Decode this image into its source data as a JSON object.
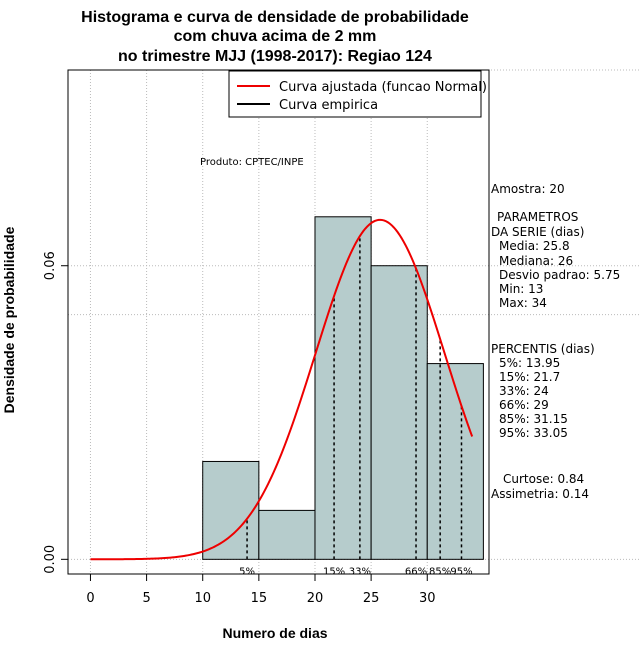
{
  "chart_data": {
    "type": "bar",
    "title_lines": [
      "Histograma e curva de densidade de probabilidade",
      "com chuva acima de 2 mm",
      "no trimestre MJJ (1998-2017): Regiao 124"
    ],
    "xlabel": "Numero de dias",
    "ylabel": "Densidade de probabilidade",
    "xlim": [
      -2,
      35.5
    ],
    "ylim": [
      -0.003,
      0.1
    ],
    "x_ticks": [
      0,
      5,
      10,
      15,
      20,
      25,
      30
    ],
    "y_ticks": [
      0.0,
      0.06
    ],
    "y_tick_labels": [
      "0.00",
      "0.06"
    ],
    "grid": true,
    "grid_y_extra": [
      0.05,
      0.1
    ],
    "bins": [
      {
        "from": 10,
        "to": 15,
        "density": 0.02
      },
      {
        "from": 15,
        "to": 20,
        "density": 0.01
      },
      {
        "from": 20,
        "to": 25,
        "density": 0.07
      },
      {
        "from": 25,
        "to": 30,
        "density": 0.06
      },
      {
        "from": 30,
        "to": 35,
        "density": 0.04
      }
    ],
    "normal_fit": {
      "mean": 25.8,
      "sd": 5.75,
      "x_from": 0,
      "x_to": 34
    },
    "percentiles": [
      {
        "label": "5%",
        "value": 13.95
      },
      {
        "label": "15%",
        "value": 21.7
      },
      {
        "label": "33%",
        "value": 24
      },
      {
        "label": "66%",
        "value": 29
      },
      {
        "label": "85%",
        "value": 31.15
      },
      {
        "label": "95%",
        "value": 33.05
      }
    ],
    "legend": {
      "position": "top-right",
      "entries": [
        {
          "label": "Curva ajustada (funcao Normal)",
          "color": "#ee0000"
        },
        {
          "label": "Curva empirica",
          "color": "#000000"
        }
      ]
    },
    "annotation": "Produto: CPTEC/INPE",
    "colors": {
      "bar_fill": "#b6cccc",
      "bar_stroke": "#000000",
      "curve": "#ee0000",
      "grid": "#bbbbbb"
    }
  },
  "stats_panel": {
    "amostra": "Amostra: 20",
    "params_title": "PARAMETROS",
    "params_subtitle": "DA SERIE (dias)",
    "params": [
      "Media: 25.8",
      "Mediana: 26",
      "Desvio padrao: 5.75",
      "Min: 13",
      "Max: 34"
    ],
    "percentis_title": "PERCENTIS (dias)",
    "percentis": [
      "5%: 13.95",
      "15%: 21.7",
      "33%: 24",
      "66%: 29",
      "85%: 31.15",
      "95%: 33.05"
    ],
    "curtose": "Curtose: 0.84",
    "assimetria": "Assimetria: 0.14"
  }
}
